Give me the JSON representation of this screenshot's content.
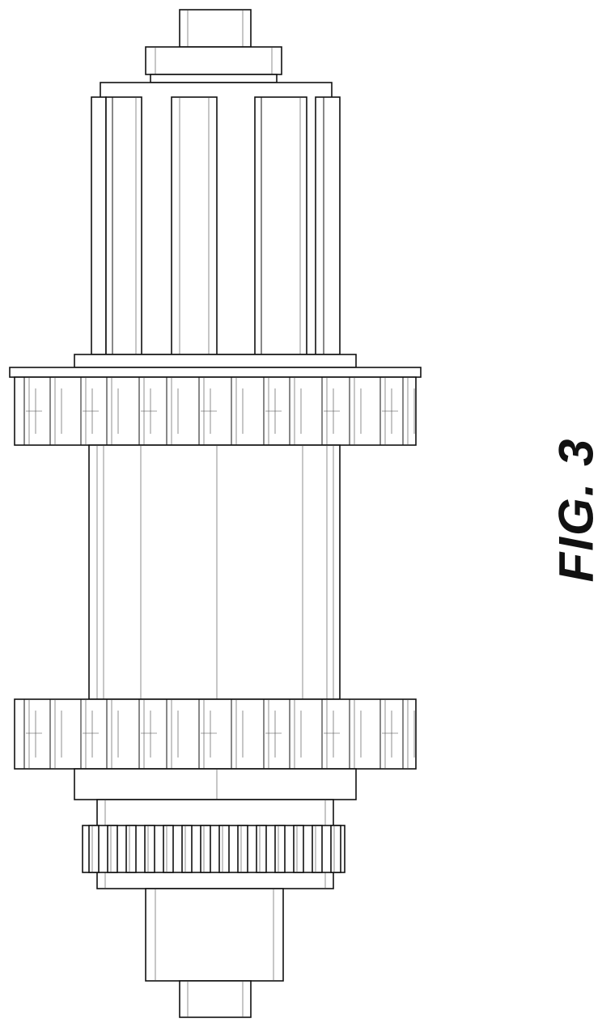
{
  "figure": {
    "label": "FIG. 3"
  },
  "colors": {
    "line": "#111111",
    "background": "#ffffff"
  }
}
